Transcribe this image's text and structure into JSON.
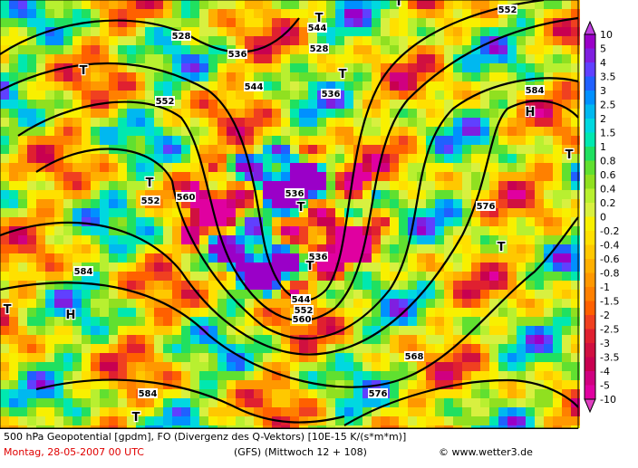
{
  "legend": {
    "labels": [
      "10",
      "5",
      "4",
      "3.5",
      "3",
      "2.5",
      "2",
      "1.5",
      "1",
      "0.8",
      "0.6",
      "0.4",
      "0.2",
      "0",
      "-0.2",
      "-0.4",
      "-0.6",
      "-0.8",
      "-1",
      "-1.5",
      "-2",
      "-2.5",
      "-3",
      "-3.5",
      "-4",
      "-5",
      "-10"
    ],
    "segment_colors": [
      "#9a00c8",
      "#7f1fe0",
      "#6040ff",
      "#2060ff",
      "#0090ff",
      "#00b8f0",
      "#00d8e0",
      "#00e8b0",
      "#20e060",
      "#60e030",
      "#90e020",
      "#b8f030",
      "#d8f040",
      "#f8f000",
      "#ffe000",
      "#ffc800",
      "#ffb000",
      "#ff9800",
      "#ff8000",
      "#ff6000",
      "#f04020",
      "#e02030",
      "#d01040",
      "#c80050",
      "#d00080",
      "#e000a0"
    ],
    "top_color": "#c040e0",
    "bottom_color": "#e040c0"
  },
  "map": {
    "contour_labels": [
      "528",
      "536",
      "528",
      "544",
      "552",
      "552",
      "544",
      "536",
      "560",
      "536",
      "536",
      "544",
      "552",
      "560",
      "584",
      "576",
      "568",
      "576",
      "584",
      "552",
      "584"
    ],
    "markers": [
      "T",
      "T",
      "T",
      "T",
      "T",
      "T",
      "T",
      "H",
      "T",
      "T",
      "H",
      "T",
      "T"
    ]
  },
  "footer": {
    "line1": "500 hPa Geopotential [gpdm], FO (Divergenz des Q-Vektors) [10E-15 K/(s*m*m)]",
    "date": "Montag, 28-05-2007  00 UTC",
    "model": "(GFS)  (Mittwoch 12 + 108)",
    "credit": "© www.wetter3.de"
  }
}
